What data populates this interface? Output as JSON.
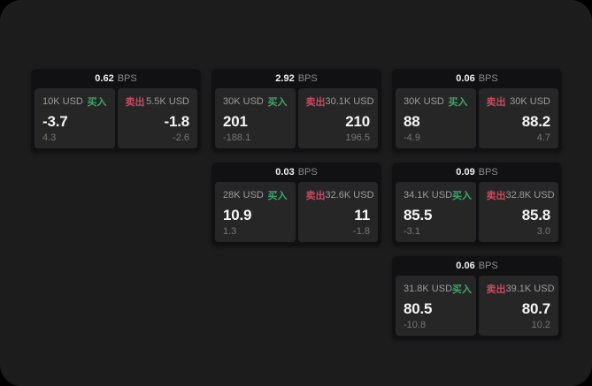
{
  "labels": {
    "unit": "BPS",
    "buy": "买入",
    "sell": "卖出"
  },
  "colors": {
    "buy_accent": "#3fa56a",
    "sell_accent": "#c74a5e",
    "window_bg": "#1c1c1d",
    "card_bg": "#111113",
    "panel_bg": "#262627"
  },
  "cards": [
    {
      "bps": "0.62",
      "buy": {
        "amount": "10K USD",
        "value": "-3.7",
        "sub": "4.3"
      },
      "sell": {
        "amount": "5.5K USD",
        "value": "-1.8",
        "sub": "-2.6"
      }
    },
    {
      "bps": "2.92",
      "buy": {
        "amount": "30K USD",
        "value": "201",
        "sub": "-188.1"
      },
      "sell": {
        "amount": "30.1K USD",
        "value": "210",
        "sub": "196.5"
      }
    },
    {
      "bps": "0.06",
      "buy": {
        "amount": "30K USD",
        "value": "88",
        "sub": "-4.9"
      },
      "sell": {
        "amount": "30K USD",
        "value": "88.2",
        "sub": "4.7"
      }
    },
    {
      "bps": "0.03",
      "buy": {
        "amount": "28K USD",
        "value": "10.9",
        "sub": "1.3"
      },
      "sell": {
        "amount": "32.6K USD",
        "value": "11",
        "sub": "-1.8"
      }
    },
    {
      "bps": "0.09",
      "buy": {
        "amount": "34.1K USD",
        "value": "85.5",
        "sub": "-3.1"
      },
      "sell": {
        "amount": "32.8K USD",
        "value": "85.8",
        "sub": "3.0"
      }
    },
    {
      "bps": "0.06",
      "buy": {
        "amount": "31.8K USD",
        "value": "80.5",
        "sub": "-10.8"
      },
      "sell": {
        "amount": "39.1K USD",
        "value": "80.7",
        "sub": "10.2"
      }
    }
  ]
}
